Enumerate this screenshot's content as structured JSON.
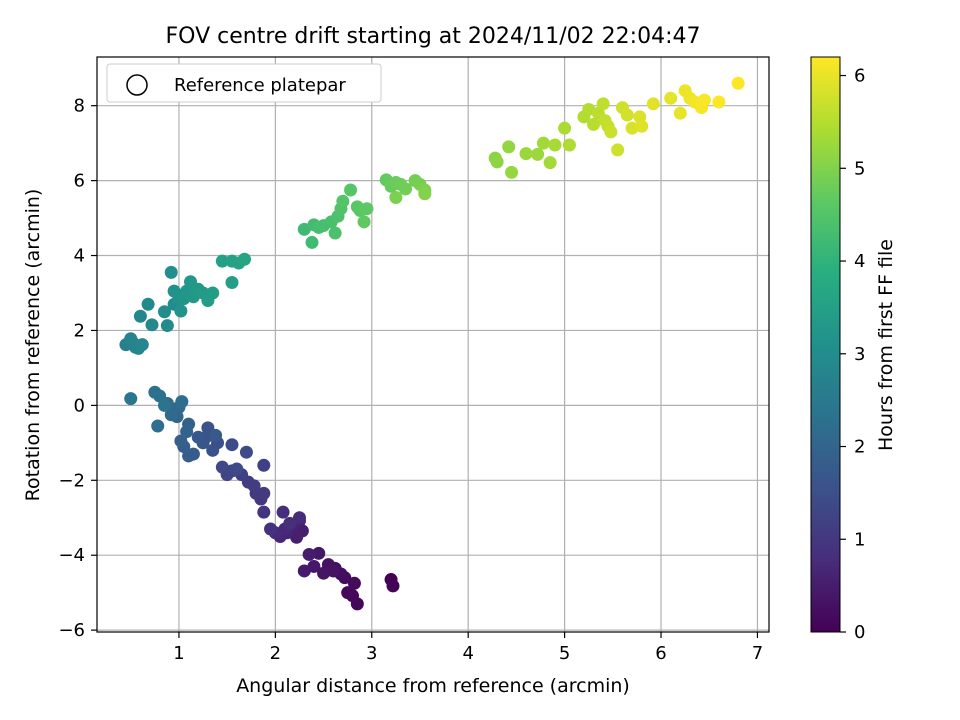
{
  "chart_data": {
    "type": "scatter",
    "title": "FOV centre drift starting at 2024/11/02 22:04:47",
    "xlabel": "Angular distance from reference (arcmin)",
    "ylabel": "Rotation from reference (arcmin)",
    "xlim": [
      0.15,
      7.12
    ],
    "ylim": [
      -6.05,
      9.3
    ],
    "xticks": [
      1,
      2,
      3,
      4,
      5,
      6,
      7
    ],
    "yticks": [
      -6,
      -4,
      -2,
      0,
      2,
      4,
      6,
      8
    ],
    "grid": true,
    "legend": {
      "entries": [
        "Reference platepar"
      ],
      "placement": "top-left"
    },
    "colorbar": {
      "label": "Hours from first FF file",
      "range": [
        0,
        6.2
      ],
      "ticks": [
        0,
        1,
        2,
        3,
        4,
        5,
        6
      ],
      "colormap": "viridis"
    },
    "series": [
      {
        "points": [
          [
            3.2,
            -4.65,
            0.02
          ],
          [
            3.22,
            -4.82,
            0.05
          ],
          [
            2.85,
            -5.3,
            0.08
          ],
          [
            2.8,
            -5.08,
            0.1
          ],
          [
            2.75,
            -5.0,
            0.13
          ],
          [
            2.82,
            -4.75,
            0.16
          ],
          [
            2.72,
            -4.6,
            0.19
          ],
          [
            2.68,
            -4.5,
            0.22
          ],
          [
            2.62,
            -4.35,
            0.25
          ],
          [
            2.55,
            -4.25,
            0.28
          ],
          [
            2.6,
            -4.42,
            0.31
          ],
          [
            2.5,
            -4.48,
            0.34
          ],
          [
            2.45,
            -3.95,
            0.38
          ],
          [
            2.4,
            -4.3,
            0.41
          ],
          [
            2.3,
            -4.42,
            0.44
          ],
          [
            2.35,
            -3.98,
            0.47
          ],
          [
            2.28,
            -3.35,
            0.5
          ],
          [
            2.22,
            -3.52,
            0.53
          ],
          [
            2.25,
            -3.08,
            0.56
          ],
          [
            2.18,
            -3.22,
            0.6
          ],
          [
            2.12,
            -3.4,
            0.63
          ],
          [
            2.05,
            -3.5,
            0.66
          ],
          [
            2.1,
            -3.3,
            0.7
          ],
          [
            2.0,
            -3.4,
            0.73
          ],
          [
            2.25,
            -3.0,
            0.76
          ],
          [
            2.08,
            -2.85,
            0.8
          ],
          [
            2.15,
            -3.15,
            0.84
          ],
          [
            1.95,
            -3.3,
            0.88
          ],
          [
            1.88,
            -2.85,
            0.92
          ],
          [
            1.85,
            -2.5,
            0.96
          ],
          [
            1.8,
            -2.35,
            1.0
          ],
          [
            1.88,
            -2.35,
            1.04
          ],
          [
            1.72,
            -2.05,
            1.08
          ],
          [
            1.78,
            -2.15,
            1.12
          ],
          [
            1.65,
            -1.85,
            1.16
          ],
          [
            1.88,
            -1.6,
            1.2
          ],
          [
            1.55,
            -1.75,
            1.24
          ],
          [
            1.5,
            -1.85,
            1.28
          ],
          [
            1.45,
            -1.65,
            1.32
          ],
          [
            1.6,
            -1.7,
            1.36
          ],
          [
            1.7,
            -1.25,
            1.4
          ],
          [
            1.55,
            -1.05,
            1.44
          ],
          [
            1.4,
            -1.0,
            1.48
          ],
          [
            1.35,
            -1.2,
            1.52
          ],
          [
            1.3,
            -0.6,
            1.56
          ],
          [
            1.28,
            -0.85,
            1.6
          ],
          [
            1.25,
            -1.0,
            1.64
          ],
          [
            1.2,
            -0.85,
            1.68
          ],
          [
            1.38,
            -0.8,
            1.72
          ],
          [
            1.15,
            -1.3,
            1.76
          ],
          [
            1.1,
            -1.35,
            1.8
          ],
          [
            1.05,
            -1.1,
            1.84
          ],
          [
            1.02,
            -0.95,
            1.88
          ],
          [
            1.1,
            -0.5,
            1.92
          ],
          [
            1.08,
            -0.7,
            1.96
          ],
          [
            0.95,
            -0.1,
            2.0
          ],
          [
            0.98,
            -0.3,
            2.04
          ],
          [
            1.0,
            -0.05,
            2.08
          ],
          [
            0.92,
            -0.25,
            2.12
          ],
          [
            0.88,
            0.05,
            2.16
          ],
          [
            1.03,
            0.1,
            2.2
          ],
          [
            0.78,
            -0.55,
            2.24
          ],
          [
            0.8,
            0.25,
            2.28
          ],
          [
            0.75,
            0.35,
            2.32
          ],
          [
            0.85,
            0.0,
            2.36
          ],
          [
            0.5,
            0.18,
            2.4
          ],
          [
            0.45,
            1.62,
            2.7
          ],
          [
            0.5,
            1.78,
            2.72
          ],
          [
            0.55,
            1.55,
            2.75
          ],
          [
            0.52,
            1.68,
            2.78
          ],
          [
            0.58,
            1.52,
            2.8
          ],
          [
            0.62,
            1.62,
            2.83
          ],
          [
            0.6,
            2.38,
            2.86
          ],
          [
            0.72,
            2.15,
            2.9
          ],
          [
            0.68,
            2.7,
            2.93
          ],
          [
            0.88,
            2.13,
            2.96
          ],
          [
            0.85,
            2.5,
            3.0
          ],
          [
            0.95,
            2.7,
            3.03
          ],
          [
            0.92,
            3.55,
            3.06
          ],
          [
            0.95,
            3.05,
            3.1
          ],
          [
            1.0,
            2.9,
            3.13
          ],
          [
            1.02,
            2.52,
            3.16
          ],
          [
            1.05,
            2.85,
            3.2
          ],
          [
            1.08,
            3.05,
            3.23
          ],
          [
            1.12,
            3.3,
            3.26
          ],
          [
            1.15,
            2.9,
            3.3
          ],
          [
            1.2,
            3.1,
            3.33
          ],
          [
            1.25,
            3.0,
            3.36
          ],
          [
            1.3,
            2.8,
            3.4
          ],
          [
            1.35,
            3.0,
            3.43
          ],
          [
            1.55,
            3.28,
            3.46
          ],
          [
            1.45,
            3.85,
            3.5
          ],
          [
            1.55,
            3.85,
            3.53
          ],
          [
            1.62,
            3.8,
            3.56
          ],
          [
            1.68,
            3.9,
            3.6
          ],
          [
            2.3,
            4.7,
            4.2
          ],
          [
            2.38,
            4.35,
            4.23
          ],
          [
            2.4,
            4.82,
            4.26
          ],
          [
            2.45,
            4.75,
            4.3
          ],
          [
            2.5,
            4.8,
            4.33
          ],
          [
            2.58,
            4.9,
            4.36
          ],
          [
            2.62,
            4.6,
            4.4
          ],
          [
            2.65,
            5.05,
            4.43
          ],
          [
            2.68,
            5.25,
            4.46
          ],
          [
            2.7,
            5.45,
            4.5
          ],
          [
            2.78,
            5.75,
            4.53
          ],
          [
            2.85,
            5.3,
            4.56
          ],
          [
            2.88,
            5.2,
            4.6
          ],
          [
            2.95,
            5.25,
            4.63
          ],
          [
            2.92,
            4.9,
            4.66
          ],
          [
            3.15,
            6.02,
            4.7
          ],
          [
            3.2,
            5.85,
            4.73
          ],
          [
            3.25,
            5.95,
            4.76
          ],
          [
            3.3,
            5.9,
            4.8
          ],
          [
            3.35,
            5.78,
            4.83
          ],
          [
            3.45,
            6.0,
            4.86
          ],
          [
            3.5,
            5.9,
            4.9
          ],
          [
            3.25,
            5.55,
            4.93
          ],
          [
            3.55,
            5.75,
            4.96
          ],
          [
            3.55,
            5.65,
            5.0
          ],
          [
            4.28,
            6.6,
            5.1
          ],
          [
            4.3,
            6.5,
            5.13
          ],
          [
            4.42,
            6.9,
            5.16
          ],
          [
            4.45,
            6.22,
            5.2
          ],
          [
            4.6,
            6.72,
            5.23
          ],
          [
            4.72,
            6.7,
            5.26
          ],
          [
            4.78,
            7.0,
            5.3
          ],
          [
            4.85,
            6.48,
            5.33
          ],
          [
            4.9,
            6.95,
            5.36
          ],
          [
            5.0,
            7.4,
            5.4
          ],
          [
            5.05,
            6.95,
            5.43
          ],
          [
            5.2,
            7.7,
            5.46
          ],
          [
            5.25,
            7.9,
            5.5
          ],
          [
            5.3,
            7.5,
            5.53
          ],
          [
            5.35,
            7.8,
            5.56
          ],
          [
            5.4,
            8.05,
            5.6
          ],
          [
            5.42,
            7.6,
            5.63
          ],
          [
            5.45,
            7.45,
            5.66
          ],
          [
            5.48,
            7.3,
            5.7
          ],
          [
            5.55,
            6.82,
            5.73
          ],
          [
            5.6,
            7.95,
            5.76
          ],
          [
            5.65,
            7.75,
            5.8
          ],
          [
            5.7,
            7.4,
            5.83
          ],
          [
            5.78,
            7.7,
            5.86
          ],
          [
            5.8,
            7.45,
            5.9
          ],
          [
            5.92,
            8.05,
            5.93
          ],
          [
            6.1,
            8.2,
            5.96
          ],
          [
            6.2,
            7.8,
            6.0
          ],
          [
            6.25,
            8.4,
            6.03
          ],
          [
            6.3,
            8.2,
            6.06
          ],
          [
            6.35,
            8.1,
            6.1
          ],
          [
            6.42,
            7.95,
            6.13
          ],
          [
            6.45,
            8.15,
            6.16
          ],
          [
            6.6,
            8.1,
            6.18
          ],
          [
            6.8,
            8.6,
            6.2
          ]
        ]
      }
    ]
  }
}
